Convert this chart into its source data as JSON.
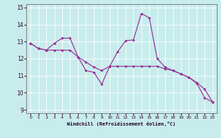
{
  "xlabel": "Windchill (Refroidissement éolien,°C)",
  "background_color": "#c8ecec",
  "line_color": "#993399",
  "xlim": [
    -0.5,
    23.5
  ],
  "ylim": [
    8.8,
    15.2
  ],
  "xticks": [
    0,
    1,
    2,
    3,
    4,
    5,
    6,
    7,
    8,
    9,
    10,
    11,
    12,
    13,
    14,
    15,
    16,
    17,
    18,
    19,
    20,
    21,
    22,
    23
  ],
  "yticks": [
    9,
    10,
    11,
    12,
    13,
    14,
    15
  ],
  "series1_x": [
    0,
    1,
    2,
    3,
    4,
    5,
    6,
    7,
    8,
    9,
    10,
    11,
    12,
    13,
    14,
    15,
    16,
    17,
    18,
    19,
    20,
    21,
    22,
    23
  ],
  "series1_y": [
    12.9,
    12.6,
    12.5,
    12.9,
    13.2,
    13.2,
    12.1,
    11.3,
    11.2,
    10.5,
    11.55,
    12.4,
    13.05,
    13.1,
    14.65,
    14.4,
    12.0,
    11.5,
    11.3,
    11.1,
    10.9,
    10.6,
    10.2,
    9.45
  ],
  "series2_x": [
    0,
    1,
    2,
    3,
    4,
    5,
    6,
    7,
    8,
    9,
    10,
    11,
    12,
    13,
    14,
    15,
    16,
    17,
    18,
    19,
    20,
    21,
    22,
    23
  ],
  "series2_y": [
    12.9,
    12.6,
    12.5,
    12.5,
    12.5,
    12.5,
    12.1,
    11.8,
    11.5,
    11.3,
    11.55,
    11.55,
    11.55,
    11.55,
    11.55,
    11.55,
    11.55,
    11.4,
    11.3,
    11.1,
    10.9,
    10.55,
    9.7,
    9.45
  ]
}
